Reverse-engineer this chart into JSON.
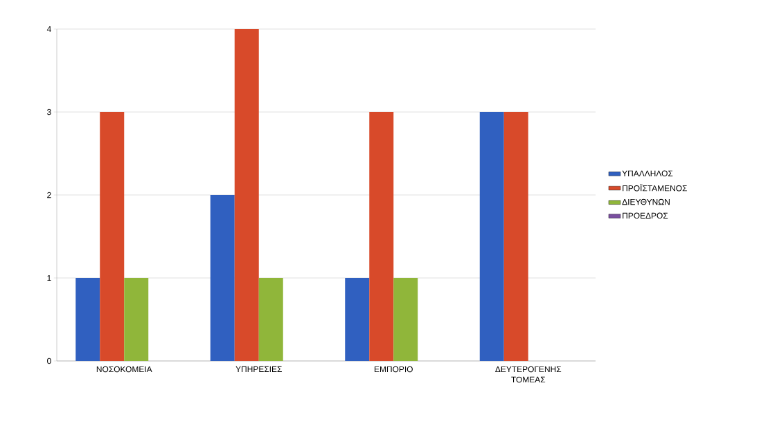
{
  "chart_data": {
    "type": "bar",
    "categories": [
      "ΝΟΣΟΚΟΜΕΙΑ",
      "ΥΠΗΡΕΣΙΕΣ",
      "ΕΜΠΟΡΙΟ",
      "ΔΕΥΤΕΡΟΓΕΝΗΣ ΤΟΜΕΑΣ"
    ],
    "series": [
      {
        "name": "ΥΠΑΛΛΗΛΟΣ",
        "color": "#3060c0",
        "values": [
          1,
          2,
          1,
          3
        ]
      },
      {
        "name": "ΠΡΟΪΣΤΑΜΕΝΟΣ",
        "color": "#d84a2a",
        "values": [
          3,
          4,
          3,
          3
        ]
      },
      {
        "name": "ΔΙΕΥΘΥΝΩΝ",
        "color": "#90b63a",
        "values": [
          1,
          1,
          1,
          0
        ]
      },
      {
        "name": "ΠΡΟΕΔΡΟΣ",
        "color": "#7a4fa0",
        "values": [
          0,
          0,
          0,
          0
        ]
      }
    ],
    "ylim": [
      0,
      4
    ],
    "yticks": [
      0,
      1,
      2,
      3,
      4
    ],
    "grid": "y",
    "legend": "right"
  }
}
